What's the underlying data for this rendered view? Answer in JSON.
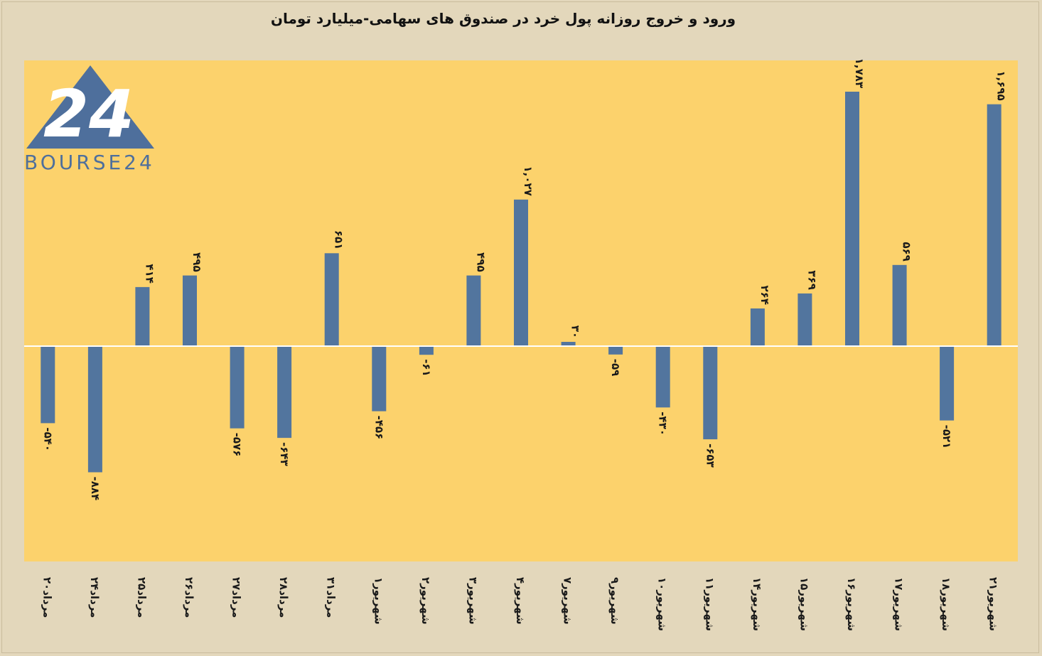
{
  "chart_data": {
    "type": "bar",
    "title": "ورود و خروج روزانه پول خرد در صندوق های سهامی-میلیارد تومان",
    "categories": [
      "۲۰مرداد",
      "۲۴مرداد",
      "۲۵مرداد",
      "۲۶مرداد",
      "۲۷مرداد",
      "۲۸مرداد",
      "۳۱مرداد",
      "۱شهریور",
      "۲شهریور",
      "۳شهریور",
      "۴شهریور",
      "۷شهریور",
      "۹شهریور",
      "۱۰شهریور",
      "۱۱شهریور",
      "۱۴شهریور",
      "۱۵شهریور",
      "۱۶شهریور",
      "۱۷شهریور",
      "۱۸شهریور",
      "۲۱شهریور"
    ],
    "values": [
      -540,
      -884,
      414,
      495,
      -576,
      -643,
      651,
      -456,
      -61,
      495,
      1027,
      30,
      -59,
      -430,
      -653,
      264,
      369,
      1783,
      569,
      -521,
      1695
    ],
    "value_labels": [
      "-۵۴۰",
      "-۸۸۴",
      "۴۱۴",
      "۴۹۵",
      "-۵۷۶",
      "-۶۴۳",
      "۶۵۱",
      "-۴۵۶",
      "-۶۱",
      "۴۹۵",
      "۱,۰۲۷",
      "۳۰",
      "-۵۹",
      "-۴۳۰",
      "-۶۵۳",
      "۲۶۴",
      "۳۶۹",
      "۱,۷۸۳",
      "۵۶۹",
      "-۵۲۱",
      "۱,۶۹۵"
    ],
    "ylim": [
      -1500,
      2000
    ],
    "grid": false,
    "colors": {
      "bar": "#52759e",
      "plot_background": "#fcd26c",
      "page_background": "#e3d7bb",
      "zero_line": "#ffffff"
    }
  },
  "logo": {
    "text": "BOURSE24",
    "mark": "24",
    "color": "#4e6f9c",
    "mark_color": "#ffffff"
  }
}
